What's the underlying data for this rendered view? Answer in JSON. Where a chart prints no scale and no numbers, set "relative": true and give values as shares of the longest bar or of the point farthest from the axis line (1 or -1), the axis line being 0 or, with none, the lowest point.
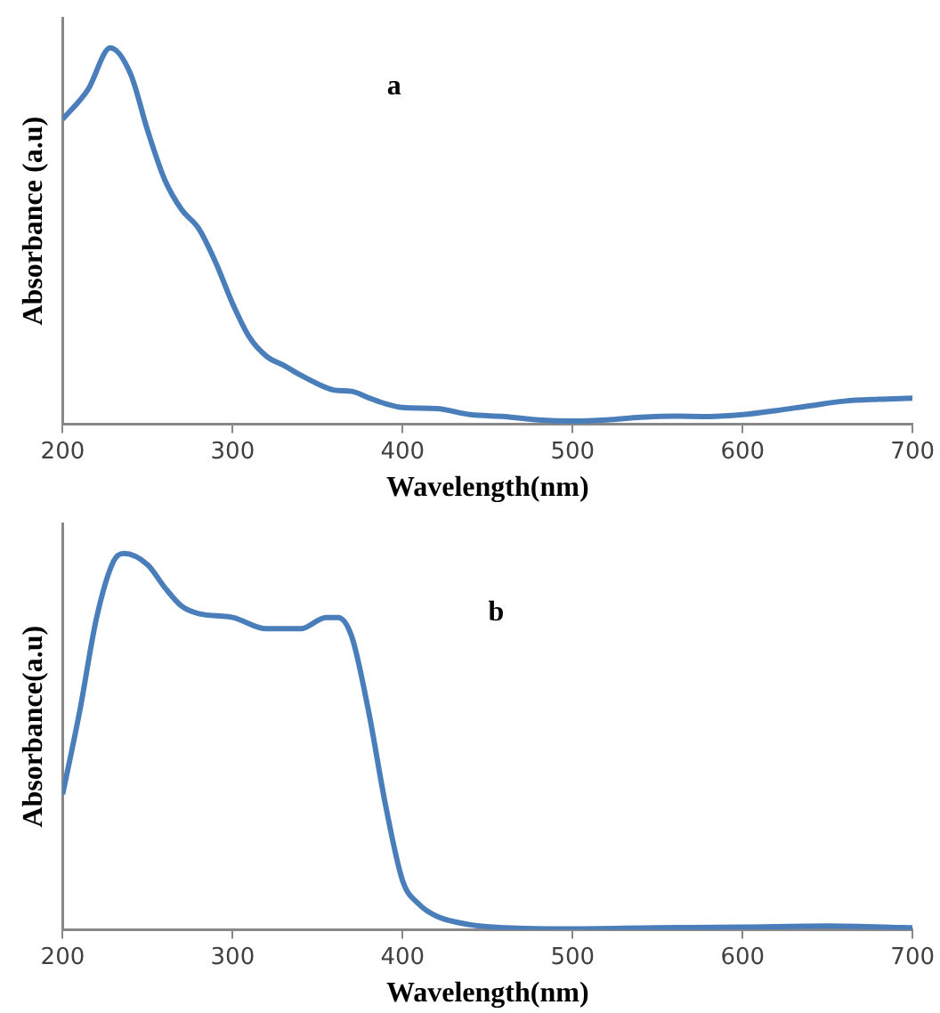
{
  "chart_data": [
    {
      "type": "line",
      "xlabel": "Wavelength(nm)",
      "ylabel": "Absorbance (a.u)",
      "annotations": [
        "a"
      ],
      "relative": true,
      "xlim": [
        200,
        700
      ],
      "xticks": [
        200,
        300,
        400,
        500,
        600,
        700
      ],
      "series": [
        {
          "color": "#4a7ebb",
          "x": [
            200,
            215,
            228,
            240,
            250,
            260,
            270,
            280,
            290,
            300,
            310,
            320,
            330,
            340,
            350,
            360,
            370,
            380,
            390,
            400,
            420,
            440,
            460,
            480,
            500,
            520,
            540,
            560,
            580,
            600,
            620,
            640,
            660,
            680,
            700
          ],
          "values": [
            0.81,
            0.89,
            1,
            0.93,
            0.78,
            0.65,
            0.57,
            0.52,
            0.43,
            0.32,
            0.23,
            0.18,
            0.156,
            0.13,
            0.107,
            0.09,
            0.087,
            0.07,
            0.054,
            0.044,
            0.041,
            0.025,
            0.02,
            0.011,
            0.008,
            0.011,
            0.018,
            0.021,
            0.02,
            0.025,
            0.036,
            0.049,
            0.061,
            0.066,
            0.069
          ]
        }
      ]
    },
    {
      "type": "line",
      "xlabel": "Wavelength(nm)",
      "ylabel": "Absorbance(a.u)",
      "annotations": [
        "b"
      ],
      "relative": true,
      "xlim": [
        200,
        700
      ],
      "xticks": [
        200,
        300,
        400,
        500,
        600,
        700
      ],
      "series": [
        {
          "color": "#4a7ebb",
          "x": [
            200,
            210,
            220,
            230,
            236,
            250,
            260,
            270,
            280,
            300,
            320,
            340,
            355,
            362,
            370,
            380,
            390,
            400,
            410,
            420,
            440,
            460,
            500,
            550,
            600,
            650,
            700
          ],
          "values": [
            0.36,
            0.58,
            0.83,
            0.98,
            1,
            0.97,
            0.91,
            0.86,
            0.84,
            0.83,
            0.8,
            0.8,
            0.83,
            0.83,
            0.78,
            0.58,
            0.33,
            0.13,
            0.066,
            0.036,
            0.013,
            0.005,
            0.002,
            0.005,
            0.007,
            0.01,
            0.005
          ]
        }
      ]
    }
  ]
}
